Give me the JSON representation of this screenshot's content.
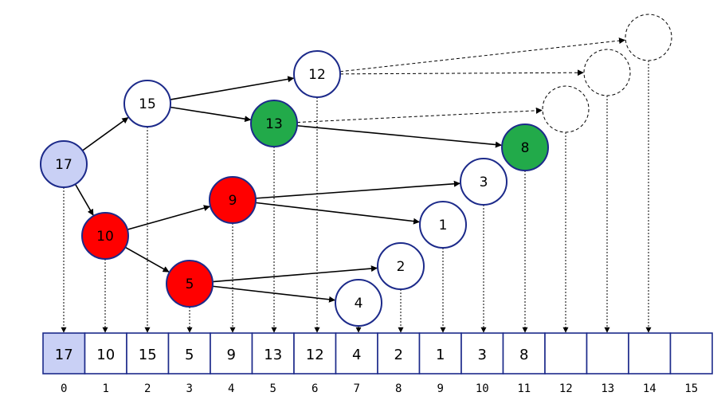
{
  "colors": {
    "white": "#ffffff",
    "root": "#c9d0f5",
    "red": "#ff0000",
    "green": "#22aa4a",
    "stroke": "#1c2a8a"
  },
  "nodes": [
    {
      "id": "n0",
      "label": "17",
      "fill": "root",
      "empty": false
    },
    {
      "id": "n1",
      "label": "10",
      "fill": "red",
      "empty": false
    },
    {
      "id": "n2",
      "label": "15",
      "fill": "white",
      "empty": false
    },
    {
      "id": "n3",
      "label": "5",
      "fill": "red",
      "empty": false
    },
    {
      "id": "n4",
      "label": "9",
      "fill": "red",
      "empty": false
    },
    {
      "id": "n5",
      "label": "13",
      "fill": "green",
      "empty": false
    },
    {
      "id": "n6",
      "label": "12",
      "fill": "white",
      "empty": false
    },
    {
      "id": "n7",
      "label": "4",
      "fill": "white",
      "empty": false
    },
    {
      "id": "n8",
      "label": "2",
      "fill": "white",
      "empty": false
    },
    {
      "id": "n9",
      "label": "1",
      "fill": "white",
      "empty": false
    },
    {
      "id": "n10",
      "label": "3",
      "fill": "white",
      "empty": false
    },
    {
      "id": "n11",
      "label": "8",
      "fill": "green",
      "empty": false
    },
    {
      "id": "n12",
      "label": "",
      "fill": "none",
      "empty": true
    },
    {
      "id": "n13",
      "label": "",
      "fill": "none",
      "empty": true
    },
    {
      "id": "n14",
      "label": "",
      "fill": "none",
      "empty": true
    }
  ],
  "array": {
    "cells": [
      "17",
      "10",
      "15",
      "5",
      "9",
      "13",
      "12",
      "4",
      "2",
      "1",
      "3",
      "8",
      "",
      "",
      "",
      ""
    ],
    "indices": [
      "0",
      "1",
      "2",
      "3",
      "4",
      "5",
      "6",
      "7",
      "8",
      "9",
      "10",
      "11",
      "12",
      "13",
      "14",
      "15"
    ],
    "highlight_index": 0
  }
}
